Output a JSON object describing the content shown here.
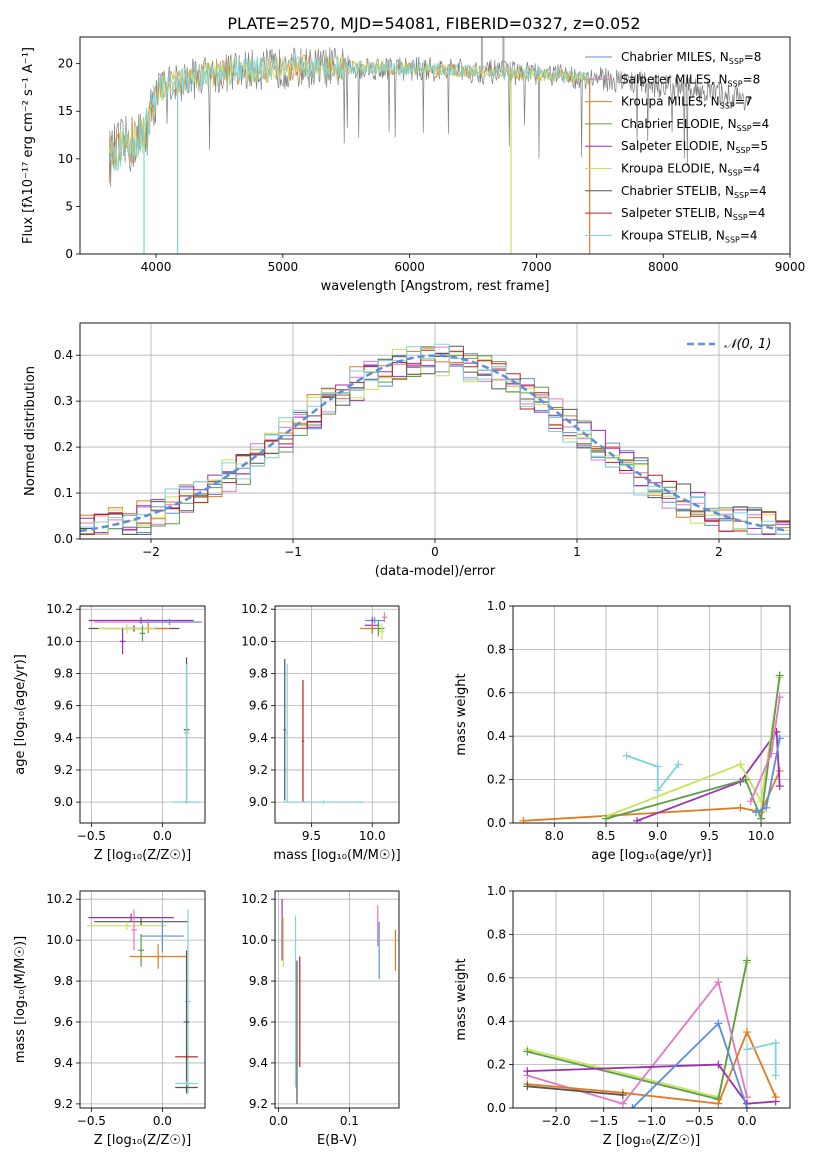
{
  "colors": {
    "chab_miles": "#5b8fd9",
    "salp_miles": "#e377c2",
    "krou_miles": "#e07b23",
    "chab_elodie": "#5a9e4b",
    "salp_elodie": "#9b2fb3",
    "krou_elodie": "#c9e25a",
    "chab_stelib": "#555555",
    "salp_stelib": "#b5231f",
    "krou_stelib": "#7fd3da",
    "data_line": "#808080",
    "grid": "#b0b0b0"
  },
  "chart_data": [
    {
      "id": "spectrum",
      "type": "line",
      "title": "PLATE=2570, MJD=54081, FIBERID=0327, z=0.052",
      "xlabel": "wavelength [Angstrom, rest frame]",
      "ylabel": "Flux [f$_\\lambda$10$^{-17}$ erg cm$^{-2}$ s$^{-1}$ A$^{-1}$]",
      "ylabel_display": "Flux [fλ10⁻¹⁷ erg cm⁻² s⁻¹ A⁻¹]",
      "xlim": [
        3400,
        9000
      ],
      "ylim": [
        0,
        22.8
      ],
      "xticks": [
        4000,
        5000,
        6000,
        7000,
        8000,
        9000
      ],
      "yticks": [
        0,
        5,
        10,
        15,
        20
      ],
      "grid": false,
      "legend_position": "top-right",
      "legend": [
        {
          "label": "Chabrier MILES, N",
          "sub": "SSP",
          "suffix": "=8",
          "color_key": "chab_miles"
        },
        {
          "label": "Salpeter MILES, N",
          "sub": "SSP",
          "suffix": "=8",
          "color_key": "salp_miles"
        },
        {
          "label": "Kroupa MILES, N",
          "sub": "SSP",
          "suffix": "=7",
          "color_key": "krou_miles"
        },
        {
          "label": "Chabrier ELODIE, N",
          "sub": "SSP",
          "suffix": "=4",
          "color_key": "chab_elodie"
        },
        {
          "label": "Salpeter ELODIE, N",
          "sub": "SSP",
          "suffix": "=5",
          "color_key": "salp_elodie"
        },
        {
          "label": "Kroupa ELODIE, N",
          "sub": "SSP",
          "suffix": "=4",
          "color_key": "krou_elodie"
        },
        {
          "label": "Chabrier STELIB, N",
          "sub": "SSP",
          "suffix": "=4",
          "color_key": "chab_stelib"
        },
        {
          "label": "Salpeter STELIB, N",
          "sub": "SSP",
          "suffix": "=4",
          "color_key": "salp_stelib"
        },
        {
          "label": "Kroupa STELIB, N",
          "sub": "SSP",
          "suffix": "=4",
          "color_key": "krou_stelib"
        }
      ],
      "continuum": {
        "x": [
          3630,
          3700,
          3800,
          3900,
          3950,
          4000,
          4100,
          4300,
          4500,
          4700,
          5000,
          5300,
          5600,
          5900,
          6200,
          6500,
          6800,
          7100,
          7400,
          7700,
          8000,
          8300,
          8700
        ],
        "y": [
          10.0,
          11.0,
          11.5,
          12.5,
          14.0,
          17.0,
          17.8,
          18.5,
          19.0,
          19.3,
          19.5,
          19.6,
          19.6,
          19.5,
          19.4,
          19.2,
          19.0,
          18.8,
          18.5,
          18.2,
          17.6,
          17.2,
          16.2
        ]
      },
      "model_range": [
        3630,
        7420
      ],
      "dips": [
        {
          "x": 3905,
          "y": 0
        },
        {
          "x": 4170,
          "y": 0
        },
        {
          "x": 6800,
          "y": 0
        },
        {
          "x": 7420,
          "y": 0
        }
      ],
      "spikes": [
        {
          "x": 6570,
          "y": 23.5
        },
        {
          "x": 6740,
          "y": 23.5
        }
      ]
    },
    {
      "id": "residual-histogram",
      "type": "line",
      "xlabel": "(data-model)/error",
      "ylabel": "Normed distribution",
      "xlim": [
        -2.5,
        2.5
      ],
      "ylim": [
        0,
        0.47
      ],
      "xticks": [
        -2,
        -1,
        0,
        1,
        2
      ],
      "yticks": [
        0.0,
        0.1,
        0.2,
        0.3,
        0.4
      ],
      "grid": true,
      "legend_position": "top-right",
      "legend": [
        "𝒩(0, 1)"
      ],
      "series": [
        {
          "name": "𝒩(0, 1)",
          "type": "gaussian",
          "mu": 0,
          "sigma": 1,
          "color": "#5b8fd9",
          "style": "dashed"
        }
      ],
      "histogram": {
        "bin_width": 0.1,
        "x_start": -2.5,
        "n_bins": 50
      }
    },
    {
      "id": "age-vs-z",
      "type": "scatter",
      "xlabel": "Z [log$_{10}$(Z/Z$_\\odot$)]",
      "xlabel_display": "Z [log₁₀(Z/Z☉)]",
      "ylabel": "age  [log$_{10}$(age/yr)]",
      "ylabel_display": "age  [log₁₀(age/yr)]",
      "xlim": [
        -0.58,
        0.3
      ],
      "ylim": [
        8.87,
        10.22
      ],
      "xticks": [
        -0.5,
        0.0
      ],
      "yticks": [
        9.0,
        9.2,
        9.4,
        9.6,
        9.8,
        10.0,
        10.2
      ],
      "grid": true,
      "points": [
        {
          "x": -0.15,
          "y": 10.13,
          "xerr": 0.37,
          "yerr": 0.02,
          "color_key": "salp_elodie"
        },
        {
          "x": -0.1,
          "y": 10.12,
          "xerr": 0.38,
          "yerr": 0.02,
          "color_key": "salp_miles"
        },
        {
          "x": 0.05,
          "y": 10.12,
          "xerr": 0.22,
          "yerr": 0.02,
          "color_key": "chab_miles"
        },
        {
          "x": -0.2,
          "y": 10.08,
          "xerr": 0.32,
          "yerr": 0.02,
          "color_key": "chab_stelib"
        },
        {
          "x": -0.1,
          "y": 10.08,
          "xerr": 0.15,
          "yerr": 0.03,
          "color_key": "krou_miles"
        },
        {
          "x": -0.25,
          "y": 10.08,
          "xerr": 0.2,
          "yerr": 0.03,
          "color_key": "krou_elodie"
        },
        {
          "x": -0.14,
          "y": 10.05,
          "xerr": 0.02,
          "yerr": 0.05,
          "color_key": "chab_elodie"
        },
        {
          "x": -0.28,
          "y": 10.0,
          "xerr": 0.02,
          "yerr": 0.08,
          "color_key": "salp_elodie"
        },
        {
          "x": 0.17,
          "y": 9.45,
          "xerr": 0.02,
          "yerr": 0.45,
          "color_key": "chab_stelib"
        },
        {
          "x": 0.17,
          "y": 9.43,
          "xerr": 0.02,
          "yerr": 0.43,
          "color_key": "krou_stelib"
        },
        {
          "x": 0.17,
          "y": 9.0,
          "xerr": 0.1,
          "yerr": 0.01,
          "color_key": "krou_stelib"
        }
      ]
    },
    {
      "id": "age-vs-mass",
      "type": "scatter",
      "xlabel": "mass [log$_{10}$(M/M$_\\odot$)]",
      "xlabel_display": "mass [log₁₀(M/M☉)]",
      "ylabel": "",
      "xlim": [
        9.2,
        10.22
      ],
      "ylim": [
        8.87,
        10.22
      ],
      "xticks": [
        9.5,
        10.0
      ],
      "yticks": [
        9.0,
        9.2,
        9.4,
        9.6,
        9.8,
        10.0,
        10.2
      ],
      "grid": true,
      "points": [
        {
          "x": 10.02,
          "y": 10.13,
          "xerr": 0.08,
          "yerr": 0.02,
          "color_key": "chab_miles"
        },
        {
          "x": 10.0,
          "y": 10.1,
          "xerr": 0.06,
          "yerr": 0.05,
          "color_key": "salp_elodie"
        },
        {
          "x": 10.0,
          "y": 10.08,
          "xerr": 0.1,
          "yerr": 0.03,
          "color_key": "krou_miles"
        },
        {
          "x": 10.05,
          "y": 10.08,
          "xerr": 0.05,
          "yerr": 0.05,
          "color_key": "chab_elodie"
        },
        {
          "x": 10.08,
          "y": 10.06,
          "xerr": 0.02,
          "yerr": 0.05,
          "color_key": "krou_elodie"
        },
        {
          "x": 10.1,
          "y": 10.15,
          "xerr": 0.02,
          "yerr": 0.03,
          "color_key": "salp_miles"
        },
        {
          "x": 9.28,
          "y": 9.45,
          "xerr": 0.01,
          "yerr": 0.44,
          "color_key": "chab_stelib"
        },
        {
          "x": 9.43,
          "y": 9.38,
          "xerr": 0.01,
          "yerr": 0.38,
          "color_key": "salp_stelib"
        },
        {
          "x": 9.3,
          "y": 9.43,
          "xerr": 0.01,
          "yerr": 0.43,
          "color_key": "krou_stelib"
        },
        {
          "x": 9.6,
          "y": 9.0,
          "xerr": 0.33,
          "yerr": 0.01,
          "color_key": "krou_stelib"
        }
      ]
    },
    {
      "id": "mass-weight-vs-age",
      "type": "line",
      "xlabel": "age  [log$_{10}$(age/yr)]",
      "xlabel_display": "age  [log₁₀(age/yr)]",
      "ylabel": "mass weight",
      "xlim": [
        7.6,
        10.28
      ],
      "ylim": [
        0.0,
        1.0
      ],
      "xticks": [
        8.0,
        8.5,
        9.0,
        9.5,
        10.0
      ],
      "yticks": [
        0.0,
        0.2,
        0.4,
        0.6,
        0.8,
        1.0
      ],
      "grid": true,
      "series": [
        {
          "color_key": "krou_miles",
          "x": [
            7.7,
            9.8,
            10.0,
            10.18
          ],
          "y": [
            0.01,
            0.07,
            0.05,
            0.24
          ]
        },
        {
          "color_key": "salp_elodie",
          "x": [
            8.8,
            9.8,
            10.15,
            10.18
          ],
          "y": [
            0.01,
            0.19,
            0.42,
            0.17
          ]
        },
        {
          "color_key": "krou_elodie",
          "x": [
            8.5,
            9.8,
            10.0,
            10.18
          ],
          "y": [
            0.03,
            0.27,
            0.1,
            0.67
          ]
        },
        {
          "color_key": "chab_elodie",
          "x": [
            8.5,
            9.85,
            10.0,
            10.18
          ],
          "y": [
            0.02,
            0.2,
            0.02,
            0.68
          ]
        },
        {
          "color_key": "salp_miles",
          "x": [
            9.9,
            10.1,
            10.18
          ],
          "y": [
            0.1,
            0.32,
            0.58
          ]
        },
        {
          "color_key": "chab_miles",
          "x": [
            9.95,
            10.05,
            10.18
          ],
          "y": [
            0.05,
            0.07,
            0.39
          ]
        },
        {
          "color_key": "krou_stelib",
          "x": [
            8.7,
            9.0,
            9.0,
            9.2
          ],
          "y": [
            0.31,
            0.26,
            0.15,
            0.27
          ]
        }
      ]
    },
    {
      "id": "mass-vs-z",
      "type": "scatter",
      "xlabel": "Z [log$_{10}$(Z/Z$_\\odot$)]",
      "xlabel_display": "Z [log₁₀(Z/Z☉)]",
      "ylabel": "mass [log$_{10}$(M/M$_\\odot$)]",
      "ylabel_display": "mass [log₁₀(M/M☉)]",
      "xlim": [
        -0.58,
        0.3
      ],
      "ylim": [
        9.18,
        10.24
      ],
      "xticks": [
        -0.5,
        0.0
      ],
      "yticks": [
        9.2,
        9.4,
        9.6,
        9.8,
        10.0,
        10.2
      ],
      "grid": true,
      "points": [
        {
          "x": -0.22,
          "y": 10.11,
          "xerr": 0.3,
          "yerr": 0.02,
          "color_key": "salp_elodie"
        },
        {
          "x": -0.15,
          "y": 10.09,
          "xerr": 0.33,
          "yerr": 0.02,
          "color_key": "chab_stelib"
        },
        {
          "x": -0.25,
          "y": 10.07,
          "xerr": 0.28,
          "yerr": 0.02,
          "color_key": "krou_elodie"
        },
        {
          "x": -0.2,
          "y": 10.05,
          "xerr": 0.02,
          "yerr": 0.1,
          "color_key": "salp_miles"
        },
        {
          "x": 0.0,
          "y": 10.02,
          "xerr": 0.15,
          "yerr": 0.08,
          "color_key": "chab_miles"
        },
        {
          "x": -0.15,
          "y": 9.95,
          "xerr": 0.02,
          "yerr": 0.08,
          "color_key": "chab_elodie"
        },
        {
          "x": -0.03,
          "y": 9.92,
          "xerr": 0.2,
          "yerr": 0.06,
          "color_key": "krou_miles"
        },
        {
          "x": 0.18,
          "y": 9.7,
          "xerr": 0.02,
          "yerr": 0.45,
          "color_key": "krou_stelib"
        },
        {
          "x": 0.17,
          "y": 9.6,
          "xerr": 0.02,
          "yerr": 0.35,
          "color_key": "chab_stelib"
        },
        {
          "x": 0.17,
          "y": 9.43,
          "xerr": 0.08,
          "yerr": 0.01,
          "color_key": "salp_stelib"
        },
        {
          "x": 0.17,
          "y": 9.3,
          "xerr": 0.08,
          "yerr": 0.01,
          "color_key": "krou_stelib"
        },
        {
          "x": 0.17,
          "y": 9.28,
          "xerr": 0.08,
          "yerr": 0.01,
          "color_key": "chab_stelib"
        }
      ]
    },
    {
      "id": "mass-vs-ebv",
      "type": "scatter",
      "xlabel": "E(B-V)",
      "ylabel": "",
      "xlim": [
        -0.005,
        0.17
      ],
      "ylim": [
        9.18,
        10.24
      ],
      "xticks": [
        0.0,
        0.1
      ],
      "yticks": [
        9.2,
        9.4,
        9.6,
        9.8,
        10.0,
        10.2
      ],
      "grid": true,
      "points": [
        {
          "x": 0.005,
          "y": 10.05,
          "xerr": 0.0,
          "yerr": 0.15,
          "color_key": "salp_elodie"
        },
        {
          "x": 0.007,
          "y": 9.99,
          "xerr": 0.0,
          "yerr": 0.12,
          "color_key": "krou_elodie"
        },
        {
          "x": 0.024,
          "y": 9.7,
          "xerr": 0.0,
          "yerr": 0.42,
          "color_key": "krou_stelib"
        },
        {
          "x": 0.026,
          "y": 9.55,
          "xerr": 0.0,
          "yerr": 0.35,
          "color_key": "chab_stelib"
        },
        {
          "x": 0.03,
          "y": 9.65,
          "xerr": 0.0,
          "yerr": 0.27,
          "color_key": "salp_stelib"
        },
        {
          "x": 0.14,
          "y": 10.07,
          "xerr": 0.0,
          "yerr": 0.1,
          "color_key": "salp_miles"
        },
        {
          "x": 0.142,
          "y": 9.95,
          "xerr": 0.0,
          "yerr": 0.14,
          "color_key": "chab_miles"
        },
        {
          "x": 0.165,
          "y": 9.95,
          "xerr": 0.0,
          "yerr": 0.1,
          "color_key": "krou_miles"
        }
      ]
    },
    {
      "id": "mass-weight-vs-z",
      "type": "line",
      "xlabel": "Z [log$_{10}$(Z/Z$_\\odot$)]",
      "xlabel_display": "Z [log₁₀(Z/Z☉)]",
      "ylabel": "mass weight",
      "xlim": [
        -2.45,
        0.45
      ],
      "ylim": [
        0.0,
        1.0
      ],
      "xticks": [
        -2.0,
        -1.5,
        -1.0,
        -0.5,
        0.0
      ],
      "tick_labels": [
        "−2.0",
        "−1.5",
        "−1.0",
        "−0.5",
        "0.0"
      ],
      "yticks": [
        0.0,
        0.2,
        0.4,
        0.6,
        0.8,
        1.0
      ],
      "grid": true,
      "series": [
        {
          "color_key": "krou_elodie",
          "x": [
            -2.3,
            -0.3,
            0.0
          ],
          "y": [
            0.27,
            0.05,
            0.67
          ]
        },
        {
          "color_key": "chab_elodie",
          "x": [
            -2.3,
            -0.3,
            0.0
          ],
          "y": [
            0.26,
            0.04,
            0.68
          ]
        },
        {
          "color_key": "salp_miles",
          "x": [
            -2.3,
            -1.3,
            -0.3,
            0.0
          ],
          "y": [
            0.15,
            0.02,
            0.58,
            0.05
          ]
        },
        {
          "color_key": "salp_elodie",
          "x": [
            -2.3,
            -0.3,
            0.0,
            0.3
          ],
          "y": [
            0.17,
            0.2,
            0.02,
            0.03
          ]
        },
        {
          "color_key": "krou_miles",
          "x": [
            -2.3,
            -1.3,
            -0.3,
            0.0,
            0.3
          ],
          "y": [
            0.11,
            0.07,
            0.02,
            0.35,
            0.05
          ]
        },
        {
          "color_key": "chab_miles",
          "x": [
            -1.2,
            -0.3,
            0.0
          ],
          "y": [
            0.0,
            0.39,
            0.0
          ]
        },
        {
          "color_key": "chab_stelib",
          "x": [
            -2.3,
            -1.3
          ],
          "y": [
            0.1,
            0.06
          ]
        },
        {
          "color_key": "krou_stelib",
          "x": [
            0.0,
            0.3,
            0.3
          ],
          "y": [
            0.27,
            0.3,
            0.15
          ]
        }
      ]
    }
  ]
}
